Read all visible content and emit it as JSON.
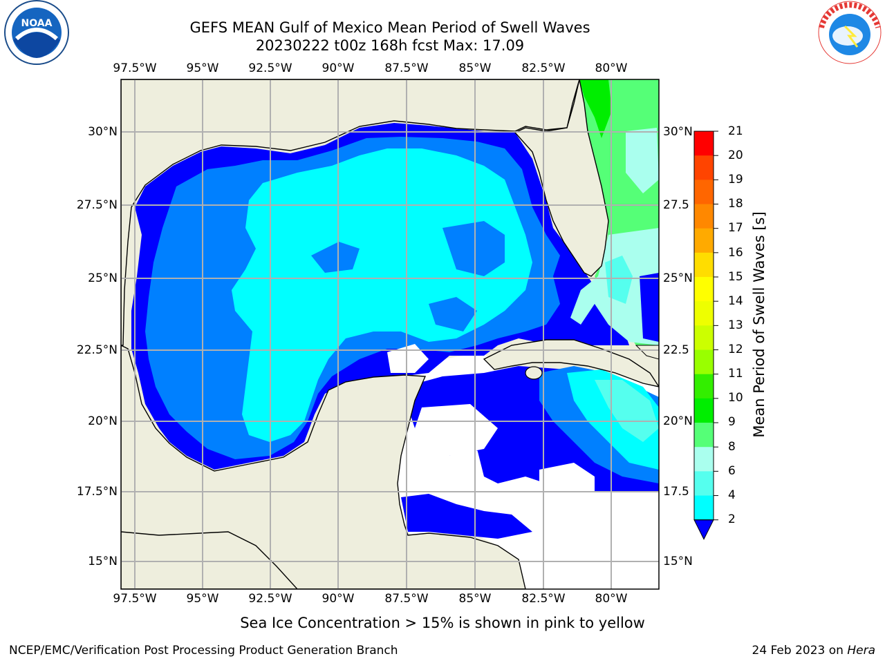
{
  "header": {
    "title_line1": "GEFS MEAN Gulf of Mexico Mean Period of Swell Waves",
    "title_line2": "20230222 t00z 168h fcst   Max: 17.09"
  },
  "axes": {
    "lon_labels": [
      "97.5°W",
      "95°W",
      "92.5°W",
      "90°W",
      "87.5°W",
      "85°W",
      "82.5°W",
      "80°W"
    ],
    "lat_labels_left": [
      "30°N",
      "27.5°N",
      "25°N",
      "22.5°N",
      "20°N",
      "17.5°N",
      "15°N"
    ],
    "lat_labels_right": [
      "30°N",
      "27.5",
      "25°N",
      "22.5",
      "20°N",
      "17.5",
      "15°N"
    ]
  },
  "colorbar": {
    "title": "Mean Period of Swell Waves [s]",
    "ticks": [
      "21",
      "20",
      "19",
      "18",
      "17",
      "16",
      "15",
      "14",
      "13",
      "12",
      "11",
      "10",
      "9",
      "8",
      "6",
      "4",
      "2"
    ],
    "colors": [
      "#ff0000",
      "#ff2200",
      "#ff4400",
      "#ff6600",
      "#ff8800",
      "#ffaa00",
      "#ffdd00",
      "#ffff00",
      "#eeff00",
      "#ccff00",
      "#99ff00",
      "#33ee00",
      "#00ee00",
      "#55ff77",
      "#aaffee",
      "#55ffee",
      "#00ffff",
      "#0088ff",
      "#0000ff"
    ]
  },
  "map": {
    "land_color": "#eeeedd",
    "grid_color": "#b0b0b0",
    "period_colors": {
      "lt2": "#0000ff",
      "p2_4": "#0080ff",
      "p4_6": "#00ffff",
      "p6_8": "#55ffee",
      "p8_9": "#aaffee",
      "p9_10": "#55ff77",
      "p10_11": "#00ee00",
      "p11_12": "#66ee00",
      "p12_13": "#ccff00",
      "p13_14": "#eeff00",
      "p14_15": "#ffff00",
      "p15_16": "#ffdd00",
      "p16_17": "#ffaa00"
    }
  },
  "note": "Sea Ice Concentration > 15% is shown in pink to yellow",
  "footer": {
    "left": "NCEP/EMC/Verification Post Processing Product Generation Branch",
    "right_date": "24 Feb 2023 on ",
    "right_host": "Hera"
  },
  "logos": {
    "noaa": "NOAA",
    "nws": "NATIONAL WEATHER SERVICE"
  }
}
